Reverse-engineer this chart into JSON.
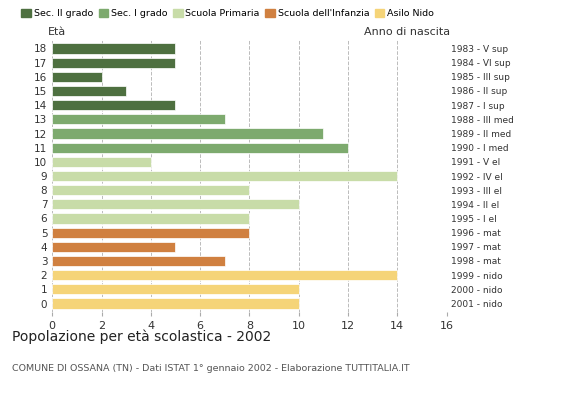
{
  "ages": [
    18,
    17,
    16,
    15,
    14,
    13,
    12,
    11,
    10,
    9,
    8,
    7,
    6,
    5,
    4,
    3,
    2,
    1,
    0
  ],
  "right_labels": [
    "1983 - V sup",
    "1984 - VI sup",
    "1985 - III sup",
    "1986 - II sup",
    "1987 - I sup",
    "1988 - III med",
    "1989 - II med",
    "1990 - I med",
    "1991 - V el",
    "1992 - IV el",
    "1993 - III el",
    "1994 - II el",
    "1995 - I el",
    "1996 - mat",
    "1997 - mat",
    "1998 - mat",
    "1999 - nido",
    "2000 - nido",
    "2001 - nido"
  ],
  "values": [
    5,
    5,
    2,
    3,
    5,
    7,
    11,
    12,
    4,
    14,
    8,
    10,
    8,
    8,
    5,
    7,
    14,
    10,
    10
  ],
  "colors_by_age": {
    "18": "#4e7040",
    "17": "#4e7040",
    "16": "#4e7040",
    "15": "#4e7040",
    "14": "#4e7040",
    "13": "#7daa6e",
    "12": "#7daa6e",
    "11": "#7daa6e",
    "10": "#c8dca8",
    "9": "#c8dca8",
    "8": "#c8dca8",
    "7": "#c8dca8",
    "6": "#c8dca8",
    "5": "#d08040",
    "4": "#d08040",
    "3": "#d08040",
    "2": "#f5d478",
    "1": "#f5d478",
    "0": "#f5d478"
  },
  "xlim": [
    0,
    16
  ],
  "xticks": [
    0,
    2,
    4,
    6,
    8,
    10,
    12,
    14,
    16
  ],
  "title": "Popolazione per età scolastica - 2002",
  "subtitle": "COMUNE DI OSSANA (TN) - Dati ISTAT 1° gennaio 2002 - Elaborazione TUTTITALIA.IT",
  "label_eta": "Età",
  "label_anno": "Anno di nascita",
  "legend_labels": [
    "Sec. II grado",
    "Sec. I grado",
    "Scuola Primaria",
    "Scuola dell'Infanzia",
    "Asilo Nido"
  ],
  "legend_colors": [
    "#4e7040",
    "#7daa6e",
    "#c8dca8",
    "#d08040",
    "#f5d478"
  ],
  "bar_height": 0.72,
  "background_color": "#ffffff",
  "grid_color": "#bbbbbb"
}
